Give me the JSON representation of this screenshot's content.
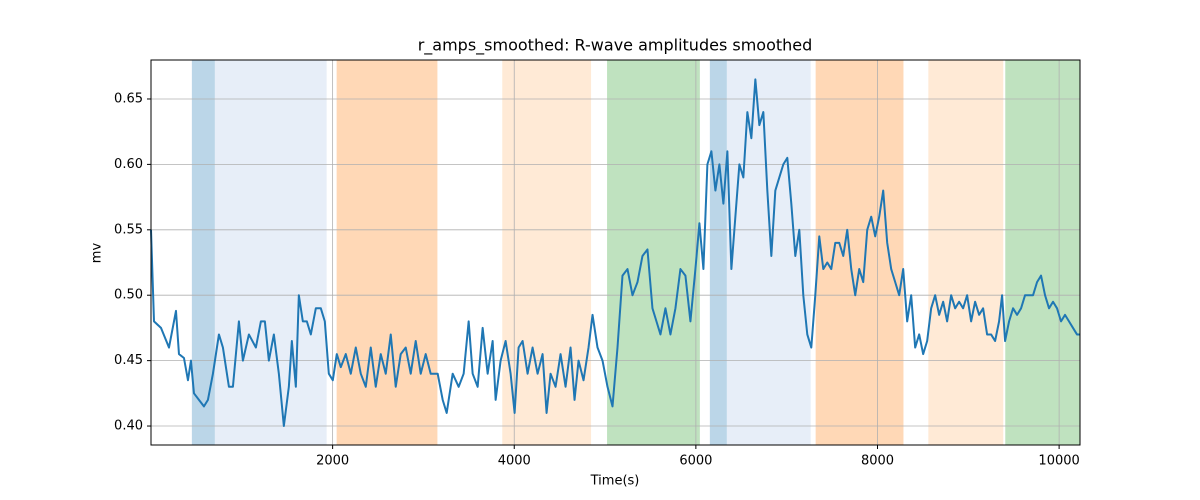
{
  "chart_data": {
    "type": "line",
    "title": "r_amps_smoothed: R-wave amplitudes smoothed",
    "x_label": "Time(s)",
    "y_label": "mv",
    "xlim": [
      0,
      10230
    ],
    "ylim": [
      0.3855,
      0.6798
    ],
    "xticks": [
      2000,
      4000,
      6000,
      8000,
      10000
    ],
    "yticks": [
      {
        "value": 0.4,
        "label": "0.40"
      },
      {
        "value": 0.45,
        "label": "0.45"
      },
      {
        "value": 0.5,
        "label": "0.50"
      },
      {
        "value": 0.55,
        "label": "0.55"
      },
      {
        "value": 0.6,
        "label": "0.60"
      },
      {
        "value": 0.65,
        "label": "0.65"
      }
    ],
    "grid": true,
    "color": "#1f77b4",
    "span_alpha": 0.3,
    "spans": [
      {
        "start": 450,
        "end": 703,
        "color": "#1f77b4"
      },
      {
        "start": 703,
        "end": 1934,
        "color": "#aec7e8"
      },
      {
        "start": 2044,
        "end": 3154,
        "color": "#ff7f0e"
      },
      {
        "start": 3868,
        "end": 4846,
        "color": "#ffbb78"
      },
      {
        "start": 5022,
        "end": 6044,
        "color": "#2ca02c"
      },
      {
        "start": 6154,
        "end": 6341,
        "color": "#1f77b4"
      },
      {
        "start": 6341,
        "end": 7264,
        "color": "#aec7e8"
      },
      {
        "start": 7319,
        "end": 8286,
        "color": "#ff7f0e"
      },
      {
        "start": 8560,
        "end": 9385,
        "color": "#ffbb78"
      },
      {
        "start": 9407,
        "end": 10230,
        "color": "#2ca02c"
      }
    ],
    "x": [
      0,
      33,
      110,
      198,
      275,
      308,
      363,
      407,
      440,
      473,
      528,
      583,
      627,
      682,
      748,
      792,
      858,
      902,
      968,
      1012,
      1078,
      1155,
      1210,
      1254,
      1298,
      1353,
      1408,
      1463,
      1518,
      1551,
      1595,
      1628,
      1672,
      1716,
      1760,
      1815,
      1870,
      1914,
      1958,
      2002,
      2046,
      2090,
      2145,
      2200,
      2255,
      2310,
      2365,
      2420,
      2475,
      2530,
      2585,
      2640,
      2695,
      2750,
      2805,
      2860,
      2915,
      2970,
      3025,
      3080,
      3157,
      3212,
      3256,
      3322,
      3388,
      3443,
      3498,
      3542,
      3597,
      3652,
      3707,
      3762,
      3795,
      3850,
      3905,
      3960,
      4004,
      4048,
      4092,
      4147,
      4202,
      4257,
      4312,
      4356,
      4400,
      4455,
      4510,
      4565,
      4620,
      4664,
      4708,
      4763,
      4818,
      4862,
      4917,
      4972,
      5027,
      5082,
      5137,
      5192,
      5247,
      5302,
      5357,
      5412,
      5467,
      5522,
      5566,
      5610,
      5665,
      5720,
      5775,
      5830,
      5885,
      5940,
      5995,
      6039,
      6083,
      6127,
      6171,
      6215,
      6259,
      6303,
      6347,
      6391,
      6435,
      6479,
      6523,
      6567,
      6611,
      6655,
      6699,
      6743,
      6787,
      6831,
      6875,
      6919,
      6963,
      7007,
      7051,
      7095,
      7139,
      7183,
      7227,
      7271,
      7315,
      7359,
      7403,
      7447,
      7491,
      7535,
      7579,
      7623,
      7667,
      7711,
      7755,
      7799,
      7843,
      7887,
      7931,
      7975,
      8019,
      8063,
      8107,
      8151,
      8195,
      8239,
      8283,
      8327,
      8371,
      8415,
      8459,
      8503,
      8547,
      8591,
      8635,
      8679,
      8723,
      8767,
      8811,
      8855,
      8899,
      8943,
      8987,
      9031,
      9075,
      9119,
      9163,
      9207,
      9251,
      9295,
      9339,
      9372,
      9405,
      9449,
      9493,
      9537,
      9581,
      9625,
      9669,
      9713,
      9757,
      9801,
      9845,
      9889,
      9933,
      9977,
      10021,
      10065,
      10109,
      10153,
      10197,
      10230
    ],
    "values": [
      0.55,
      0.48,
      0.475,
      0.46,
      0.488,
      0.455,
      0.452,
      0.435,
      0.45,
      0.425,
      0.42,
      0.415,
      0.42,
      0.44,
      0.47,
      0.46,
      0.43,
      0.43,
      0.48,
      0.45,
      0.47,
      0.46,
      0.48,
      0.48,
      0.45,
      0.47,
      0.44,
      0.4,
      0.43,
      0.465,
      0.43,
      0.5,
      0.48,
      0.48,
      0.47,
      0.49,
      0.49,
      0.48,
      0.44,
      0.435,
      0.455,
      0.445,
      0.455,
      0.44,
      0.46,
      0.44,
      0.43,
      0.46,
      0.43,
      0.455,
      0.44,
      0.47,
      0.43,
      0.455,
      0.46,
      0.44,
      0.465,
      0.44,
      0.455,
      0.44,
      0.44,
      0.42,
      0.41,
      0.44,
      0.43,
      0.44,
      0.48,
      0.44,
      0.43,
      0.475,
      0.44,
      0.465,
      0.42,
      0.45,
      0.465,
      0.44,
      0.41,
      0.46,
      0.465,
      0.44,
      0.46,
      0.44,
      0.455,
      0.41,
      0.44,
      0.43,
      0.455,
      0.43,
      0.46,
      0.42,
      0.45,
      0.435,
      0.46,
      0.485,
      0.46,
      0.45,
      0.43,
      0.415,
      0.46,
      0.515,
      0.52,
      0.5,
      0.51,
      0.53,
      0.535,
      0.49,
      0.48,
      0.47,
      0.49,
      0.47,
      0.49,
      0.52,
      0.515,
      0.48,
      0.52,
      0.555,
      0.52,
      0.6,
      0.61,
      0.58,
      0.6,
      0.57,
      0.61,
      0.52,
      0.56,
      0.6,
      0.59,
      0.64,
      0.62,
      0.665,
      0.63,
      0.64,
      0.58,
      0.53,
      0.58,
      0.59,
      0.6,
      0.605,
      0.57,
      0.53,
      0.55,
      0.5,
      0.47,
      0.46,
      0.5,
      0.545,
      0.52,
      0.525,
      0.52,
      0.54,
      0.54,
      0.53,
      0.55,
      0.52,
      0.5,
      0.52,
      0.51,
      0.55,
      0.56,
      0.545,
      0.56,
      0.58,
      0.54,
      0.52,
      0.51,
      0.5,
      0.52,
      0.48,
      0.5,
      0.46,
      0.47,
      0.455,
      0.465,
      0.49,
      0.5,
      0.485,
      0.495,
      0.48,
      0.5,
      0.49,
      0.495,
      0.49,
      0.5,
      0.48,
      0.495,
      0.485,
      0.49,
      0.47,
      0.47,
      0.465,
      0.48,
      0.5,
      0.465,
      0.48,
      0.49,
      0.485,
      0.49,
      0.5,
      0.5,
      0.5,
      0.51,
      0.515,
      0.5,
      0.49,
      0.495,
      0.49,
      0.48,
      0.485,
      0.48,
      0.475,
      0.47,
      0.47
    ]
  }
}
